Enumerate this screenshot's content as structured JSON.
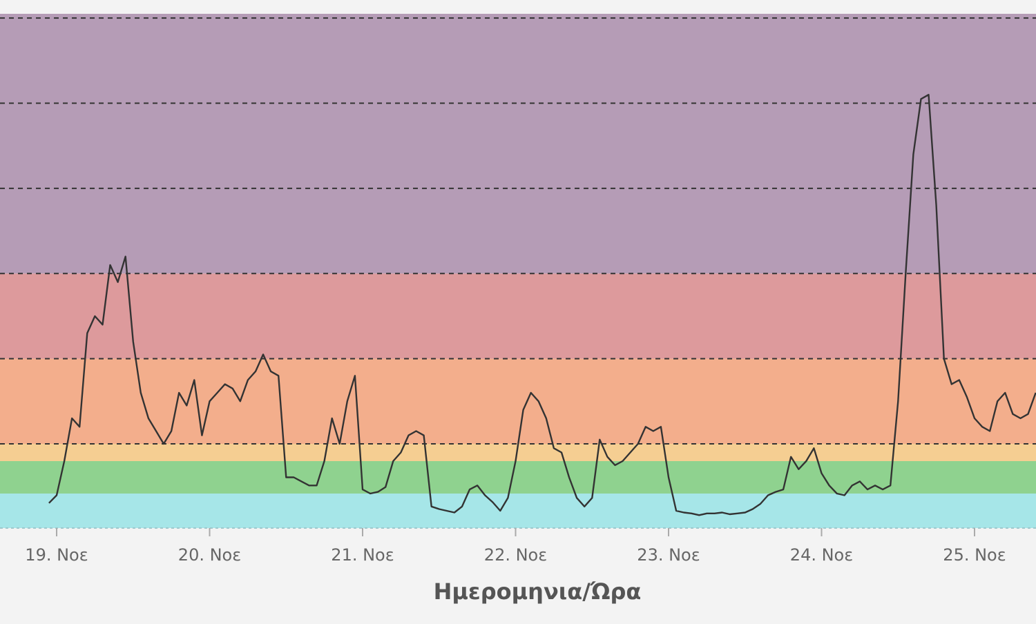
{
  "chart_data": {
    "type": "line",
    "title": "",
    "xlabel": "Ημερομηνια/Ώρα",
    "ylabel": "",
    "x_ticks": [
      "19. Νοε",
      "20. Νοε",
      "21. Νοε",
      "22. Νοε",
      "23. Νοε",
      "24. Νοε",
      "25. Νοε"
    ],
    "x_unit": "days",
    "xlim": [
      18.95,
      25.4
    ],
    "ylim": [
      0,
      6.05
    ],
    "grid": "dashed horizontal at band thresholds",
    "bands": [
      {
        "from": 0,
        "to": 0.4,
        "color": "#a6e6e8"
      },
      {
        "from": 0.4,
        "to": 0.8,
        "color": "#8fd28f"
      },
      {
        "from": 0.8,
        "to": 1.0,
        "color": "#f5ce92"
      },
      {
        "from": 1.0,
        "to": 2.0,
        "color": "#f3ae8c"
      },
      {
        "from": 2.0,
        "to": 3.0,
        "color": "#dd9a9c"
      },
      {
        "from": 3.0,
        "to": 6.05,
        "color": "#b59cb6"
      }
    ],
    "thresholds": [
      1,
      2,
      3,
      4,
      5,
      6
    ],
    "line_color": "#333333",
    "series": [
      {
        "points": [
          [
            18.95,
            0.29
          ],
          [
            19.0,
            0.38
          ],
          [
            19.05,
            0.8
          ],
          [
            19.1,
            1.3
          ],
          [
            19.15,
            1.2
          ],
          [
            19.2,
            2.3
          ],
          [
            19.25,
            2.5
          ],
          [
            19.3,
            2.4
          ],
          [
            19.35,
            3.1
          ],
          [
            19.4,
            2.9
          ],
          [
            19.45,
            3.2
          ],
          [
            19.5,
            2.2
          ],
          [
            19.55,
            1.6
          ],
          [
            19.6,
            1.3
          ],
          [
            19.65,
            1.15
          ],
          [
            19.7,
            1.0
          ],
          [
            19.75,
            1.15
          ],
          [
            19.8,
            1.6
          ],
          [
            19.85,
            1.45
          ],
          [
            19.9,
            1.75
          ],
          [
            19.95,
            1.1
          ],
          [
            20.0,
            1.5
          ],
          [
            20.05,
            1.6
          ],
          [
            20.1,
            1.7
          ],
          [
            20.15,
            1.65
          ],
          [
            20.2,
            1.5
          ],
          [
            20.25,
            1.75
          ],
          [
            20.3,
            1.85
          ],
          [
            20.35,
            2.05
          ],
          [
            20.4,
            1.85
          ],
          [
            20.45,
            1.8
          ],
          [
            20.5,
            0.6
          ],
          [
            20.55,
            0.6
          ],
          [
            20.6,
            0.55
          ],
          [
            20.65,
            0.5
          ],
          [
            20.7,
            0.5
          ],
          [
            20.75,
            0.8
          ],
          [
            20.8,
            1.3
          ],
          [
            20.85,
            1.0
          ],
          [
            20.9,
            1.5
          ],
          [
            20.95,
            1.8
          ],
          [
            21.0,
            0.45
          ],
          [
            21.05,
            0.4
          ],
          [
            21.1,
            0.42
          ],
          [
            21.15,
            0.48
          ],
          [
            21.2,
            0.8
          ],
          [
            21.25,
            0.9
          ],
          [
            21.3,
            1.1
          ],
          [
            21.35,
            1.15
          ],
          [
            21.4,
            1.1
          ],
          [
            21.45,
            0.25
          ],
          [
            21.5,
            0.22
          ],
          [
            21.55,
            0.2
          ],
          [
            21.6,
            0.18
          ],
          [
            21.65,
            0.25
          ],
          [
            21.7,
            0.45
          ],
          [
            21.75,
            0.5
          ],
          [
            21.8,
            0.38
          ],
          [
            21.85,
            0.3
          ],
          [
            21.9,
            0.2
          ],
          [
            21.95,
            0.35
          ],
          [
            22.0,
            0.8
          ],
          [
            22.05,
            1.4
          ],
          [
            22.1,
            1.6
          ],
          [
            22.15,
            1.5
          ],
          [
            22.2,
            1.3
          ],
          [
            22.25,
            0.95
          ],
          [
            22.3,
            0.9
          ],
          [
            22.35,
            0.6
          ],
          [
            22.4,
            0.35
          ],
          [
            22.45,
            0.25
          ],
          [
            22.5,
            0.35
          ],
          [
            22.55,
            1.05
          ],
          [
            22.6,
            0.85
          ],
          [
            22.65,
            0.75
          ],
          [
            22.7,
            0.8
          ],
          [
            22.75,
            0.9
          ],
          [
            22.8,
            1.0
          ],
          [
            22.85,
            1.2
          ],
          [
            22.9,
            1.15
          ],
          [
            22.95,
            1.2
          ],
          [
            23.0,
            0.6
          ],
          [
            23.05,
            0.2
          ],
          [
            23.1,
            0.18
          ],
          [
            23.15,
            0.17
          ],
          [
            23.2,
            0.15
          ],
          [
            23.25,
            0.17
          ],
          [
            23.3,
            0.17
          ],
          [
            23.35,
            0.18
          ],
          [
            23.4,
            0.16
          ],
          [
            23.45,
            0.17
          ],
          [
            23.5,
            0.18
          ],
          [
            23.55,
            0.22
          ],
          [
            23.6,
            0.28
          ],
          [
            23.65,
            0.38
          ],
          [
            23.7,
            0.42
          ],
          [
            23.75,
            0.45
          ],
          [
            23.8,
            0.85
          ],
          [
            23.85,
            0.7
          ],
          [
            23.9,
            0.8
          ],
          [
            23.95,
            0.95
          ],
          [
            24.0,
            0.65
          ],
          [
            24.05,
            0.5
          ],
          [
            24.1,
            0.4
          ],
          [
            24.15,
            0.38
          ],
          [
            24.2,
            0.5
          ],
          [
            24.25,
            0.55
          ],
          [
            24.3,
            0.45
          ],
          [
            24.35,
            0.5
          ],
          [
            24.4,
            0.45
          ],
          [
            24.45,
            0.5
          ],
          [
            24.5,
            1.5
          ],
          [
            24.55,
            3.0
          ],
          [
            24.6,
            4.4
          ],
          [
            24.65,
            5.05
          ],
          [
            24.7,
            5.1
          ],
          [
            24.75,
            3.8
          ],
          [
            24.8,
            2.0
          ],
          [
            24.85,
            1.7
          ],
          [
            24.9,
            1.75
          ],
          [
            24.95,
            1.55
          ],
          [
            25.0,
            1.3
          ],
          [
            25.05,
            1.2
          ],
          [
            25.1,
            1.15
          ],
          [
            25.15,
            1.5
          ],
          [
            25.2,
            1.6
          ],
          [
            25.25,
            1.35
          ],
          [
            25.3,
            1.3
          ],
          [
            25.35,
            1.35
          ],
          [
            25.4,
            1.6
          ]
        ]
      }
    ]
  }
}
